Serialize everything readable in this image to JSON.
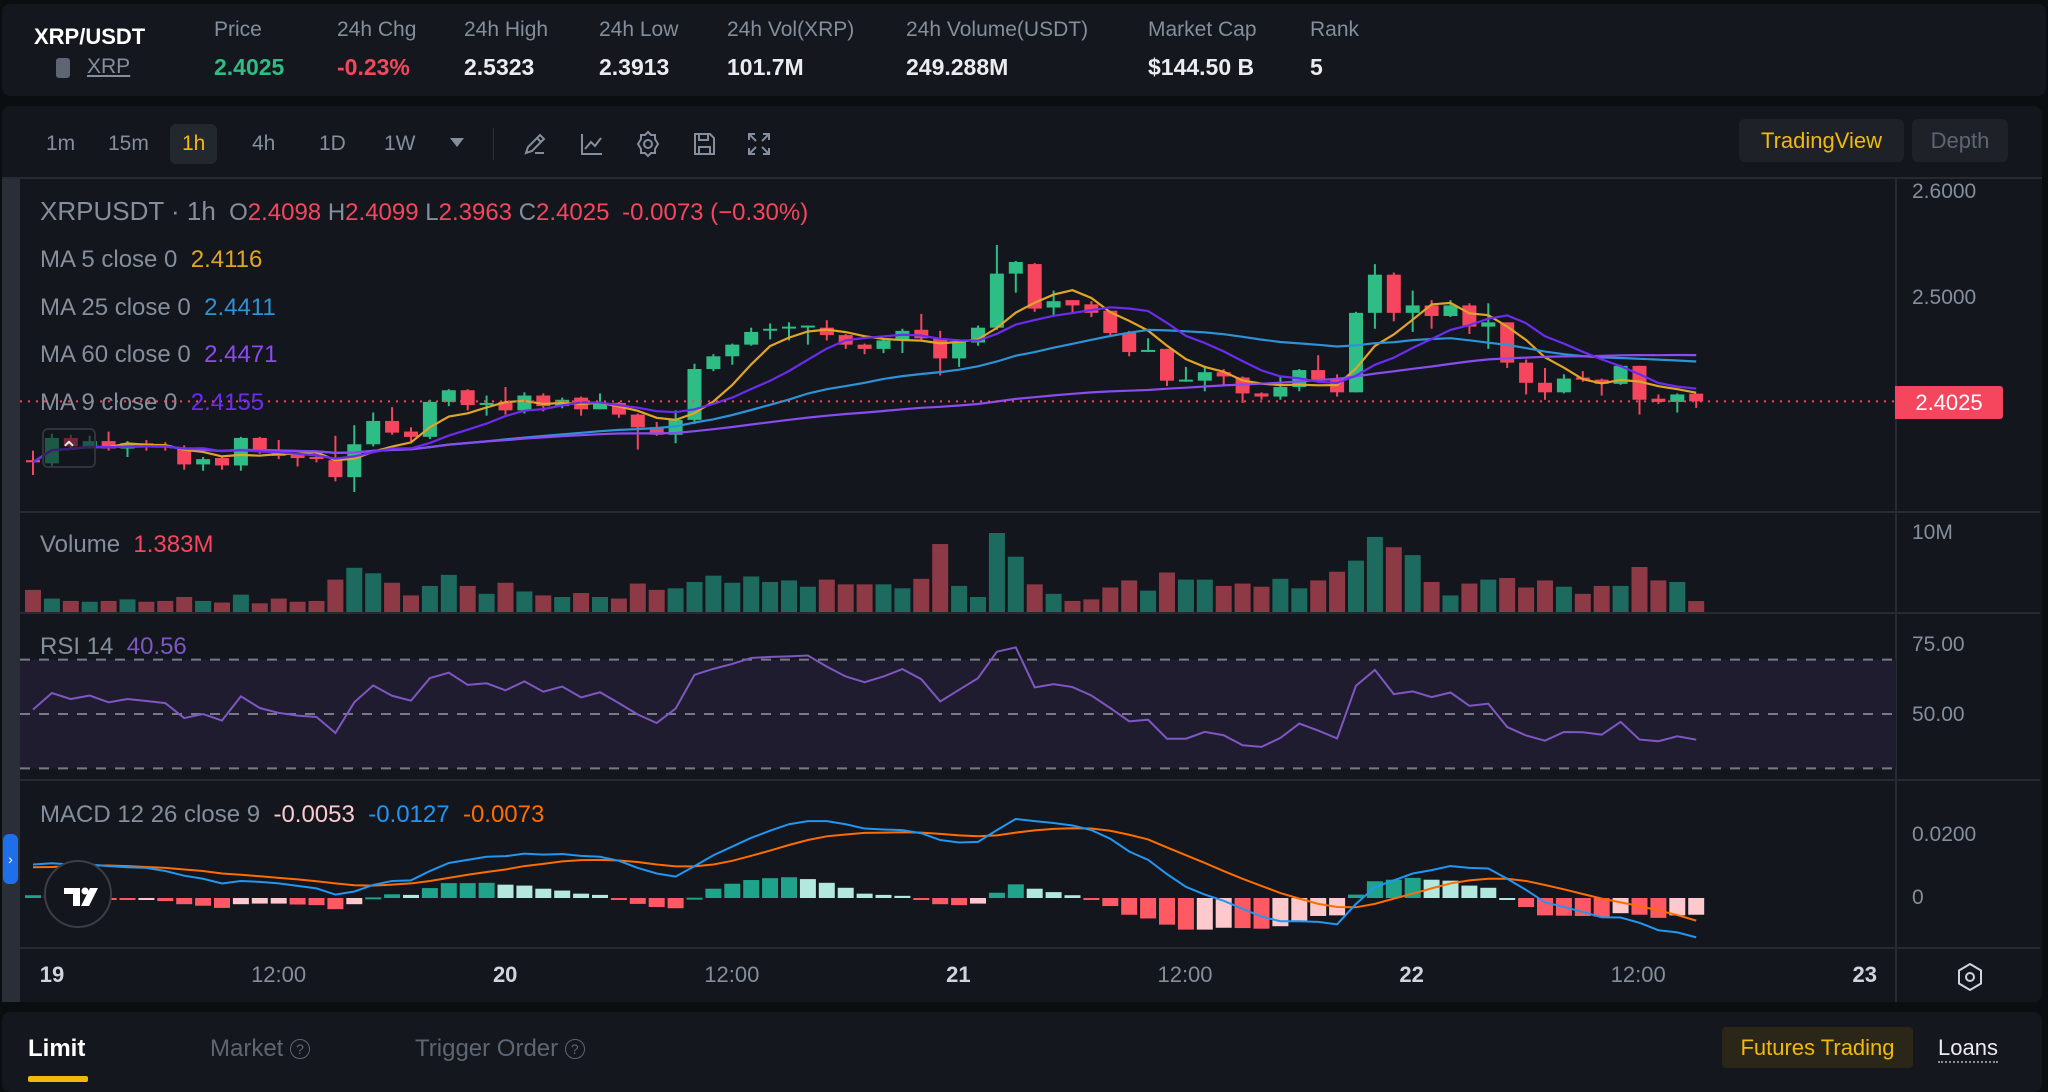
{
  "header": {
    "pair": "XRP/USDT",
    "coin_link": "XRP",
    "stats": [
      {
        "label": "Price",
        "value": "2.4025"
      },
      {
        "label": "24h Chg",
        "value": "-0.23%"
      },
      {
        "label": "24h High",
        "value": "2.5323"
      },
      {
        "label": "24h Low",
        "value": "2.3913"
      },
      {
        "label": "24h Vol(XRP)",
        "value": "101.7M"
      },
      {
        "label": "24h Volume(USDT)",
        "value": "249.288M"
      },
      {
        "label": "Market Cap",
        "value": "$144.50 B"
      },
      {
        "label": "Rank",
        "value": "5"
      }
    ]
  },
  "toolbar": {
    "intervals": [
      "1m",
      "15m",
      "1h",
      "4h",
      "1D",
      "1W"
    ],
    "selected_interval": "1h",
    "tools": [
      "pencil-icon",
      "indicator-icon",
      "gear-icon",
      "save-icon",
      "fullscreen-icon"
    ],
    "view_tradingview": "TradingView",
    "view_depth": "Depth"
  },
  "legend": {
    "symbol": "XRPUSDT",
    "sep": "·",
    "interval": "1h",
    "o_label": "O",
    "o": "2.4098",
    "h_label": "H",
    "h": "2.4099",
    "l_label": "L",
    "l": "2.3963",
    "c_label": "C",
    "c": "2.4025",
    "change": "-0.0073 (−0.30%)",
    "ma": [
      {
        "label": "MA 5 close 0",
        "value": "2.4116",
        "color": "#e0a526",
        "period": 5
      },
      {
        "label": "MA 25 close 0",
        "value": "2.4411",
        "color": "#2b93d6",
        "period": 25
      },
      {
        "label": "MA 60 close 0",
        "value": "2.4471",
        "color": "#8a4cf0",
        "period": 60
      },
      {
        "label": "MA 9 close 0",
        "value": "2.4155",
        "color": "#6c2cf0",
        "period": 9
      }
    ],
    "volume_label": "Volume",
    "volume_value": "1.383M",
    "rsi_label": "RSI 14",
    "rsi_value": "40.56",
    "macd_label": "MACD 12 26 close 9",
    "macd_hist": "-0.0053",
    "macd_line": "-0.0127",
    "macd_signal": "-0.0073"
  },
  "axes": {
    "price_ticks": [
      "2.6000",
      "2.5000"
    ],
    "last_price": "2.4025",
    "volume_tick": "10M",
    "rsi_ticks": [
      "75.00",
      "50.00"
    ],
    "macd_ticks": [
      "0.0200",
      "0"
    ],
    "time_ticks": [
      {
        "label": "19",
        "major": true
      },
      {
        "label": "12:00",
        "major": false
      },
      {
        "label": "20",
        "major": true
      },
      {
        "label": "12:00",
        "major": false
      },
      {
        "label": "21",
        "major": true
      },
      {
        "label": "12:00",
        "major": false
      },
      {
        "label": "22",
        "major": true
      },
      {
        "label": "12:00",
        "major": false
      },
      {
        "label": "23",
        "major": true
      }
    ]
  },
  "colors": {
    "up": "#2ebd85",
    "down": "#f6465d",
    "vol_up": "#1d6b5e",
    "vol_down": "#8e3a46",
    "accent": "#f0b90b",
    "rsi": "#7e57c2",
    "macd": "#2196f3",
    "signal": "#ff6d00"
  },
  "chart_data": {
    "type": "candlestick",
    "interval": "1h",
    "price_range": [
      2.3,
      2.6
    ],
    "ohlc": [
      [
        2.347,
        2.356,
        2.333,
        2.345
      ],
      [
        2.344,
        2.372,
        2.34,
        2.368
      ],
      [
        2.368,
        2.371,
        2.358,
        2.36
      ],
      [
        2.36,
        2.37,
        2.358,
        2.365
      ],
      [
        2.365,
        2.374,
        2.356,
        2.358
      ],
      [
        2.358,
        2.365,
        2.35,
        2.363
      ],
      [
        2.363,
        2.366,
        2.356,
        2.361
      ],
      [
        2.361,
        2.364,
        2.356,
        2.359
      ],
      [
        2.359,
        2.361,
        2.338,
        2.343
      ],
      [
        2.343,
        2.35,
        2.337,
        2.348
      ],
      [
        2.349,
        2.35,
        2.338,
        2.342
      ],
      [
        2.342,
        2.369,
        2.337,
        2.368
      ],
      [
        2.368,
        2.369,
        2.353,
        2.355
      ],
      [
        2.356,
        2.366,
        2.348,
        2.351
      ],
      [
        2.352,
        2.354,
        2.341,
        2.349
      ],
      [
        2.35,
        2.355,
        2.345,
        2.349
      ],
      [
        2.347,
        2.37,
        2.327,
        2.331
      ],
      [
        2.331,
        2.38,
        2.317,
        2.362
      ],
      [
        2.362,
        2.392,
        2.36,
        2.384
      ],
      [
        2.384,
        2.397,
        2.371,
        2.373
      ],
      [
        2.374,
        2.378,
        2.365,
        2.369
      ],
      [
        2.369,
        2.404,
        2.367,
        2.402
      ],
      [
        2.402,
        2.414,
        2.398,
        2.413
      ],
      [
        2.413,
        2.414,
        2.394,
        2.399
      ],
      [
        2.4,
        2.408,
        2.389,
        2.401
      ],
      [
        2.402,
        2.416,
        2.39,
        2.394
      ],
      [
        2.394,
        2.411,
        2.391,
        2.408
      ],
      [
        2.408,
        2.41,
        2.393,
        2.398
      ],
      [
        2.398,
        2.406,
        2.396,
        2.404
      ],
      [
        2.406,
        2.407,
        2.389,
        2.395
      ],
      [
        2.395,
        2.41,
        2.395,
        2.401
      ],
      [
        2.401,
        2.402,
        2.387,
        2.39
      ],
      [
        2.39,
        2.391,
        2.357,
        2.378
      ],
      [
        2.378,
        2.383,
        2.37,
        2.371
      ],
      [
        2.371,
        2.394,
        2.363,
        2.385
      ],
      [
        2.385,
        2.438,
        2.381,
        2.433
      ],
      [
        2.433,
        2.447,
        2.431,
        2.445
      ],
      [
        2.445,
        2.457,
        2.437,
        2.456
      ],
      [
        2.456,
        2.472,
        2.455,
        2.468
      ],
      [
        2.47,
        2.476,
        2.461,
        2.471
      ],
      [
        2.472,
        2.477,
        2.46,
        2.473
      ],
      [
        2.473,
        2.474,
        2.456,
        2.474
      ],
      [
        2.472,
        2.479,
        2.46,
        2.465
      ],
      [
        2.465,
        2.466,
        2.452,
        2.456
      ],
      [
        2.456,
        2.457,
        2.447,
        2.452
      ],
      [
        2.452,
        2.462,
        2.448,
        2.46
      ],
      [
        2.46,
        2.471,
        2.448,
        2.469
      ],
      [
        2.47,
        2.485,
        2.46,
        2.462
      ],
      [
        2.462,
        2.469,
        2.427,
        2.443
      ],
      [
        2.443,
        2.461,
        2.435,
        2.459
      ],
      [
        2.458,
        2.474,
        2.455,
        2.472
      ],
      [
        2.472,
        2.55,
        2.47,
        2.523
      ],
      [
        2.523,
        2.535,
        2.505,
        2.534
      ],
      [
        2.532,
        2.533,
        2.487,
        2.49
      ],
      [
        2.491,
        2.507,
        2.483,
        2.497
      ],
      [
        2.498,
        2.498,
        2.486,
        2.493
      ],
      [
        2.494,
        2.497,
        2.482,
        2.486
      ],
      [
        2.488,
        2.488,
        2.464,
        2.467
      ],
      [
        2.467,
        2.469,
        2.445,
        2.449
      ],
      [
        2.45,
        2.462,
        2.449,
        2.451
      ],
      [
        2.452,
        2.452,
        2.417,
        2.422
      ],
      [
        2.422,
        2.435,
        2.421,
        2.423
      ],
      [
        2.422,
        2.436,
        2.412,
        2.43
      ],
      [
        2.43,
        2.433,
        2.417,
        2.426
      ],
      [
        2.425,
        2.426,
        2.401,
        2.41
      ],
      [
        2.41,
        2.411,
        2.404,
        2.407
      ],
      [
        2.407,
        2.427,
        2.404,
        2.416
      ],
      [
        2.416,
        2.433,
        2.412,
        2.432
      ],
      [
        2.432,
        2.446,
        2.42,
        2.423
      ],
      [
        2.423,
        2.428,
        2.407,
        2.411
      ],
      [
        2.411,
        2.487,
        2.411,
        2.486
      ],
      [
        2.486,
        2.532,
        2.471,
        2.522
      ],
      [
        2.522,
        2.524,
        2.478,
        2.486
      ],
      [
        2.486,
        2.507,
        2.468,
        2.493
      ],
      [
        2.493,
        2.498,
        2.471,
        2.483
      ],
      [
        2.483,
        2.498,
        2.482,
        2.493
      ],
      [
        2.493,
        2.495,
        2.466,
        2.473
      ],
      [
        2.473,
        2.495,
        2.452,
        2.477
      ],
      [
        2.477,
        2.477,
        2.434,
        2.439
      ],
      [
        2.439,
        2.442,
        2.409,
        2.42
      ],
      [
        2.42,
        2.434,
        2.404,
        2.411
      ],
      [
        2.411,
        2.428,
        2.41,
        2.424
      ],
      [
        2.425,
        2.431,
        2.421,
        2.423
      ],
      [
        2.423,
        2.424,
        2.408,
        2.419
      ],
      [
        2.419,
        2.437,
        2.418,
        2.436
      ],
      [
        2.436,
        2.436,
        2.39,
        2.404
      ],
      [
        2.405,
        2.409,
        2.4,
        2.402
      ],
      [
        2.402,
        2.41,
        2.392,
        2.409
      ],
      [
        2.4098,
        2.4099,
        2.3963,
        2.4025
      ]
    ],
    "volume_millions": [
      2.8,
      1.7,
      1.4,
      1.3,
      1.4,
      1.6,
      1.3,
      1.4,
      1.9,
      1.4,
      1.2,
      2.2,
      1.1,
      1.7,
      1.3,
      1.4,
      4.1,
      5.6,
      4.9,
      3.7,
      2.1,
      3.3,
      4.7,
      3.3,
      2.3,
      3.7,
      2.6,
      2.1,
      1.9,
      2.4,
      1.9,
      1.7,
      3.6,
      2.8,
      3.0,
      3.8,
      4.6,
      3.7,
      4.5,
      3.8,
      4.0,
      3.2,
      4.1,
      3.5,
      3.5,
      3.5,
      3.0,
      4.2,
      8.6,
      3.3,
      1.9,
      10.0,
      7.0,
      3.5,
      2.3,
      1.4,
      1.6,
      3.1,
      4.0,
      2.7,
      5.0,
      4.1,
      4.1,
      3.3,
      3.6,
      3.2,
      4.2,
      3.0,
      4.0,
      5.1,
      6.5,
      9.5,
      8.2,
      7.2,
      3.8,
      2.1,
      3.6,
      4.1,
      4.3,
      3.1,
      4.0,
      3.2,
      2.3,
      3.3,
      3.3,
      5.7,
      4.0,
      3.8,
      1.383
    ],
    "volume_range": [
      0,
      10
    ],
    "rsi": [
      51.6,
      57.7,
      55.5,
      56.8,
      54.3,
      55.5,
      54.8,
      54.0,
      48.5,
      50.0,
      47.6,
      56.5,
      52.2,
      50.4,
      49.4,
      48.9,
      43.0,
      54.3,
      60.5,
      56.7,
      54.9,
      63.2,
      65.2,
      60.7,
      61.3,
      58.7,
      62.0,
      58.2,
      60.1,
      56.1,
      58.0,
      54.0,
      49.8,
      46.7,
      52.0,
      64.4,
      66.6,
      68.4,
      70.6,
      71.0,
      71.2,
      71.5,
      67.4,
      63.8,
      61.7,
      63.8,
      66.5,
      62.8,
      54.6,
      58.9,
      63.2,
      72.9,
      74.5,
      59.8,
      61.0,
      59.9,
      56.8,
      52.2,
      47.3,
      47.9,
      40.9,
      40.9,
      43.4,
      42.2,
      38.5,
      37.9,
      41.2,
      46.5,
      43.9,
      41.0,
      60.4,
      66.2,
      57.3,
      58.3,
      56.2,
      57.9,
      53.0,
      53.8,
      45.2,
      42.1,
      40.2,
      43.4,
      43.3,
      42.4,
      47.1,
      40.6,
      40.0,
      41.8,
      40.56
    ],
    "rsi_bands": [
      70,
      50,
      30
    ],
    "macd": [
      0.0108,
      0.0112,
      0.0108,
      0.0108,
      0.0103,
      0.0099,
      0.0097,
      0.0087,
      0.0072,
      0.0062,
      0.0047,
      0.0055,
      0.0052,
      0.0047,
      0.0039,
      0.0031,
      0.0011,
      0.0021,
      0.0042,
      0.0055,
      0.0057,
      0.0087,
      0.0113,
      0.0123,
      0.0133,
      0.0135,
      0.0143,
      0.014,
      0.0142,
      0.0136,
      0.0133,
      0.012,
      0.0097,
      0.0079,
      0.0069,
      0.0103,
      0.0138,
      0.0166,
      0.0194,
      0.0217,
      0.0238,
      0.0248,
      0.0248,
      0.0238,
      0.0224,
      0.0221,
      0.0219,
      0.0209,
      0.0187,
      0.0179,
      0.0181,
      0.0219,
      0.0255,
      0.0248,
      0.0242,
      0.0234,
      0.0219,
      0.0191,
      0.015,
      0.0123,
      0.0077,
      0.0036,
      0.0011,
      -0.0009,
      -0.0035,
      -0.006,
      -0.0075,
      -0.0075,
      -0.0077,
      -0.0085,
      -0.0019,
      0.0035,
      0.0057,
      0.0079,
      0.009,
      0.0103,
      0.0097,
      0.0095,
      0.0062,
      0.0026,
      -0.0014,
      -0.0029,
      -0.0045,
      -0.0062,
      -0.0063,
      -0.008,
      -0.0104,
      -0.0111,
      -0.0127
    ],
    "signal": [
      0.0099,
      0.01,
      0.0103,
      0.0105,
      0.0105,
      0.0103,
      0.01,
      0.0097,
      0.0092,
      0.0087,
      0.0079,
      0.0075,
      0.007,
      0.0065,
      0.006,
      0.0054,
      0.0047,
      0.0041,
      0.004,
      0.0043,
      0.0047,
      0.0055,
      0.0065,
      0.0075,
      0.0084,
      0.0092,
      0.0103,
      0.011,
      0.0118,
      0.0122,
      0.0123,
      0.0121,
      0.0116,
      0.0108,
      0.0102,
      0.0102,
      0.0108,
      0.012,
      0.0136,
      0.0153,
      0.0171,
      0.0187,
      0.0199,
      0.0205,
      0.021,
      0.0211,
      0.0212,
      0.0211,
      0.0207,
      0.0202,
      0.0199,
      0.0202,
      0.0211,
      0.0218,
      0.0223,
      0.0225,
      0.0224,
      0.0217,
      0.0204,
      0.0189,
      0.0163,
      0.0138,
      0.0113,
      0.0087,
      0.0062,
      0.0039,
      0.0016,
      -0.0002,
      -0.0019,
      -0.0029,
      -0.003,
      -0.0019,
      -0.0002,
      0.0014,
      0.0031,
      0.0047,
      0.0057,
      0.0062,
      0.0062,
      0.0055,
      0.0042,
      0.0028,
      0.0013,
      -0.0002,
      -0.0014,
      -0.0026,
      -0.004,
      -0.0055,
      -0.0073
    ]
  },
  "order_panel": {
    "tabs": [
      "Limit",
      "Market",
      "Trigger Order"
    ],
    "active_tab": "Limit",
    "help_glyph": "?",
    "futures": "Futures Trading",
    "loans": "Loans"
  }
}
